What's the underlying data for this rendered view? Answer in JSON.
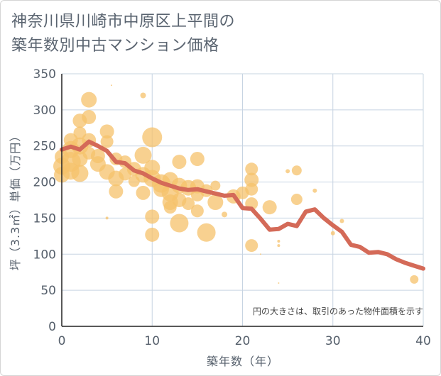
{
  "chart_data": {
    "type": "scatter",
    "title": "神奈川県川崎市中原区上平間の\n築年数別中古マンション価格",
    "xlabel": "築年数（年）",
    "ylabel": "坪（3.3㎡）単価（万円）",
    "xlim": [
      0,
      40
    ],
    "ylim": [
      0,
      350
    ],
    "xticks": [
      0,
      10,
      20,
      30,
      40
    ],
    "yticks": [
      0,
      50,
      100,
      150,
      200,
      250,
      300,
      350
    ],
    "grid": true,
    "note": "円の大きさは、取引のあった物件面積を示す",
    "colors": {
      "bubble": "#f5c26b",
      "line": "#d46a58",
      "grid": "#c7d4e2",
      "axis": "#222222"
    },
    "scatter_points": [
      {
        "x": 0,
        "y": 210,
        "s": 11
      },
      {
        "x": 0,
        "y": 222,
        "s": 12
      },
      {
        "x": 0,
        "y": 235,
        "s": 10
      },
      {
        "x": 1,
        "y": 215,
        "s": 12
      },
      {
        "x": 1,
        "y": 228,
        "s": 14
      },
      {
        "x": 1,
        "y": 245,
        "s": 12
      },
      {
        "x": 1,
        "y": 258,
        "s": 10
      },
      {
        "x": 2,
        "y": 212,
        "s": 12
      },
      {
        "x": 2,
        "y": 232,
        "s": 11
      },
      {
        "x": 2,
        "y": 250,
        "s": 12
      },
      {
        "x": 2,
        "y": 268,
        "s": 9
      },
      {
        "x": 2,
        "y": 285,
        "s": 10
      },
      {
        "x": 3,
        "y": 290,
        "s": 10
      },
      {
        "x": 3,
        "y": 314,
        "s": 11
      },
      {
        "x": 3,
        "y": 258,
        "s": 10
      },
      {
        "x": 3,
        "y": 240,
        "s": 9
      },
      {
        "x": 4,
        "y": 225,
        "s": 11
      },
      {
        "x": 4,
        "y": 236,
        "s": 10
      },
      {
        "x": 5,
        "y": 270,
        "s": 10
      },
      {
        "x": 5,
        "y": 256,
        "s": 9
      },
      {
        "x": 5,
        "y": 214,
        "s": 11
      },
      {
        "x": 5,
        "y": 150,
        "s": 2
      },
      {
        "x": 5.5,
        "y": 334,
        "s": 1
      },
      {
        "x": 6,
        "y": 187,
        "s": 10
      },
      {
        "x": 6,
        "y": 205,
        "s": 11
      },
      {
        "x": 6,
        "y": 232,
        "s": 9
      },
      {
        "x": 7,
        "y": 228,
        "s": 9
      },
      {
        "x": 7,
        "y": 211,
        "s": 9
      },
      {
        "x": 8,
        "y": 218,
        "s": 10
      },
      {
        "x": 8,
        "y": 201,
        "s": 8
      },
      {
        "x": 9,
        "y": 320,
        "s": 4
      },
      {
        "x": 9,
        "y": 237,
        "s": 12
      },
      {
        "x": 9,
        "y": 210,
        "s": 11
      },
      {
        "x": 9,
        "y": 185,
        "s": 10
      },
      {
        "x": 10,
        "y": 262,
        "s": 14
      },
      {
        "x": 10,
        "y": 220,
        "s": 11
      },
      {
        "x": 10,
        "y": 205,
        "s": 12
      },
      {
        "x": 10,
        "y": 152,
        "s": 10
      },
      {
        "x": 10,
        "y": 127,
        "s": 10
      },
      {
        "x": 11,
        "y": 198,
        "s": 13
      },
      {
        "x": 11,
        "y": 190,
        "s": 11
      },
      {
        "x": 12,
        "y": 203,
        "s": 11
      },
      {
        "x": 12,
        "y": 185,
        "s": 12
      },
      {
        "x": 12,
        "y": 172,
        "s": 11
      },
      {
        "x": 12,
        "y": 165,
        "s": 9
      },
      {
        "x": 13,
        "y": 228,
        "s": 10
      },
      {
        "x": 13,
        "y": 195,
        "s": 11
      },
      {
        "x": 13,
        "y": 175,
        "s": 10
      },
      {
        "x": 13,
        "y": 143,
        "s": 13
      },
      {
        "x": 14,
        "y": 192,
        "s": 11
      },
      {
        "x": 14,
        "y": 170,
        "s": 9
      },
      {
        "x": 15,
        "y": 232,
        "s": 10
      },
      {
        "x": 15,
        "y": 194,
        "s": 10
      },
      {
        "x": 15,
        "y": 182,
        "s": 9
      },
      {
        "x": 15,
        "y": 160,
        "s": 9
      },
      {
        "x": 16,
        "y": 188,
        "s": 9
      },
      {
        "x": 16,
        "y": 130,
        "s": 13
      },
      {
        "x": 17,
        "y": 195,
        "s": 7
      },
      {
        "x": 17,
        "y": 172,
        "s": 11
      },
      {
        "x": 18,
        "y": 155,
        "s": 4
      },
      {
        "x": 19,
        "y": 180,
        "s": 10
      },
      {
        "x": 20,
        "y": 185,
        "s": 9
      },
      {
        "x": 21,
        "y": 218,
        "s": 9
      },
      {
        "x": 21,
        "y": 203,
        "s": 10
      },
      {
        "x": 21,
        "y": 190,
        "s": 9
      },
      {
        "x": 21,
        "y": 170,
        "s": 9
      },
      {
        "x": 21,
        "y": 112,
        "s": 9
      },
      {
        "x": 22,
        "y": 100,
        "s": 1
      },
      {
        "x": 23,
        "y": 165,
        "s": 10
      },
      {
        "x": 24,
        "y": 118,
        "s": 2
      },
      {
        "x": 24,
        "y": 112,
        "s": 2
      },
      {
        "x": 24,
        "y": 60,
        "s": 1
      },
      {
        "x": 25,
        "y": 215,
        "s": 3
      },
      {
        "x": 26,
        "y": 216,
        "s": 7
      },
      {
        "x": 26,
        "y": 176,
        "s": 8
      },
      {
        "x": 28,
        "y": 188,
        "s": 3
      },
      {
        "x": 30,
        "y": 129,
        "s": 3
      },
      {
        "x": 31,
        "y": 146,
        "s": 3
      },
      {
        "x": 39,
        "y": 65,
        "s": 6
      }
    ],
    "line": {
      "x": [
        0,
        1,
        2,
        3,
        4,
        5,
        6,
        7,
        8,
        9,
        10,
        11,
        12,
        13,
        14,
        15,
        16,
        17,
        18,
        19,
        20,
        21,
        22,
        23,
        24,
        25,
        26,
        27,
        28,
        29,
        30,
        31,
        32,
        33,
        34,
        35,
        36,
        37,
        38,
        39,
        40
      ],
      "y": [
        245,
        249,
        245,
        256,
        250,
        243,
        228,
        226,
        216,
        212,
        205,
        199,
        195,
        191,
        189,
        190,
        187,
        184,
        181,
        182,
        164,
        163,
        149,
        134,
        135,
        142,
        139,
        159,
        162,
        150,
        140,
        131,
        113,
        110,
        102,
        103,
        100,
        93,
        88,
        84,
        80
      ]
    }
  }
}
